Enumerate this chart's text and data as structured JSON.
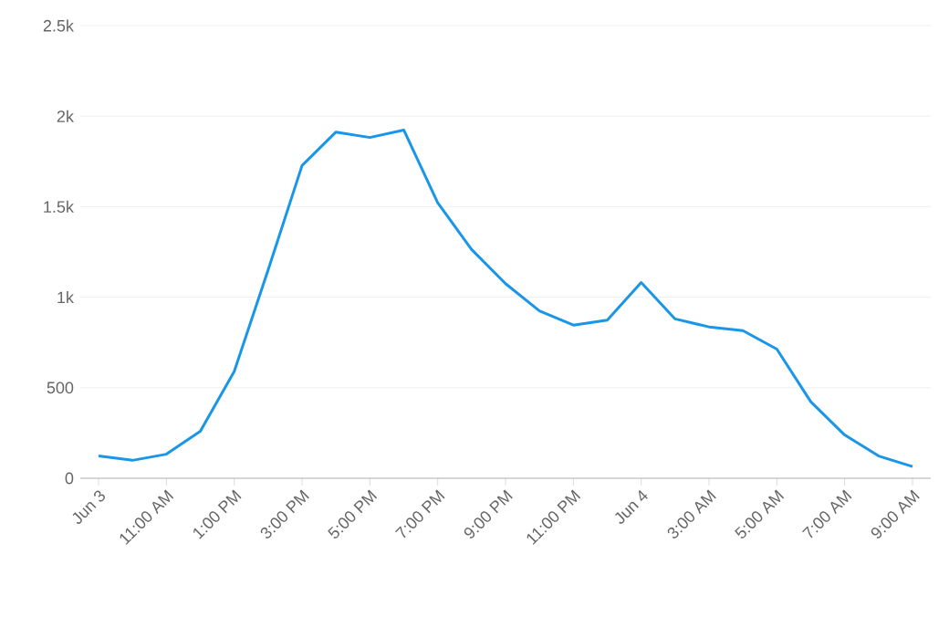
{
  "chart_data": {
    "type": "line",
    "categories": [
      "Jun 3",
      null,
      "11:00 AM",
      null,
      "1:00 PM",
      null,
      "3:00 PM",
      null,
      "5:00 PM",
      null,
      "7:00 PM",
      null,
      "9:00 PM",
      null,
      "11:00 PM",
      null,
      "Jun 4",
      null,
      "3:00 AM",
      null,
      "5:00 AM",
      null,
      "7:00 AM",
      null,
      "9:00 AM"
    ],
    "series": [
      {
        "color": "#1a96e8",
        "values": [
          123,
          99,
          133,
          259,
          590,
          1150,
          1727,
          1912,
          1882,
          1923,
          1522,
          1263,
          1075,
          924,
          846,
          873,
          1081,
          880,
          836,
          815,
          713,
          423,
          239,
          123,
          65
        ]
      }
    ],
    "ylim": [
      0,
      2500
    ],
    "yticks": [
      0,
      500,
      {
        "value": 1000,
        "label": "1k"
      },
      {
        "value": 1500,
        "label": "1.5k"
      },
      {
        "value": 2000,
        "label": "2k"
      },
      {
        "value": 2500,
        "label": "2.5k"
      }
    ],
    "grid": "y",
    "marker": "none",
    "line_style": "solid"
  }
}
